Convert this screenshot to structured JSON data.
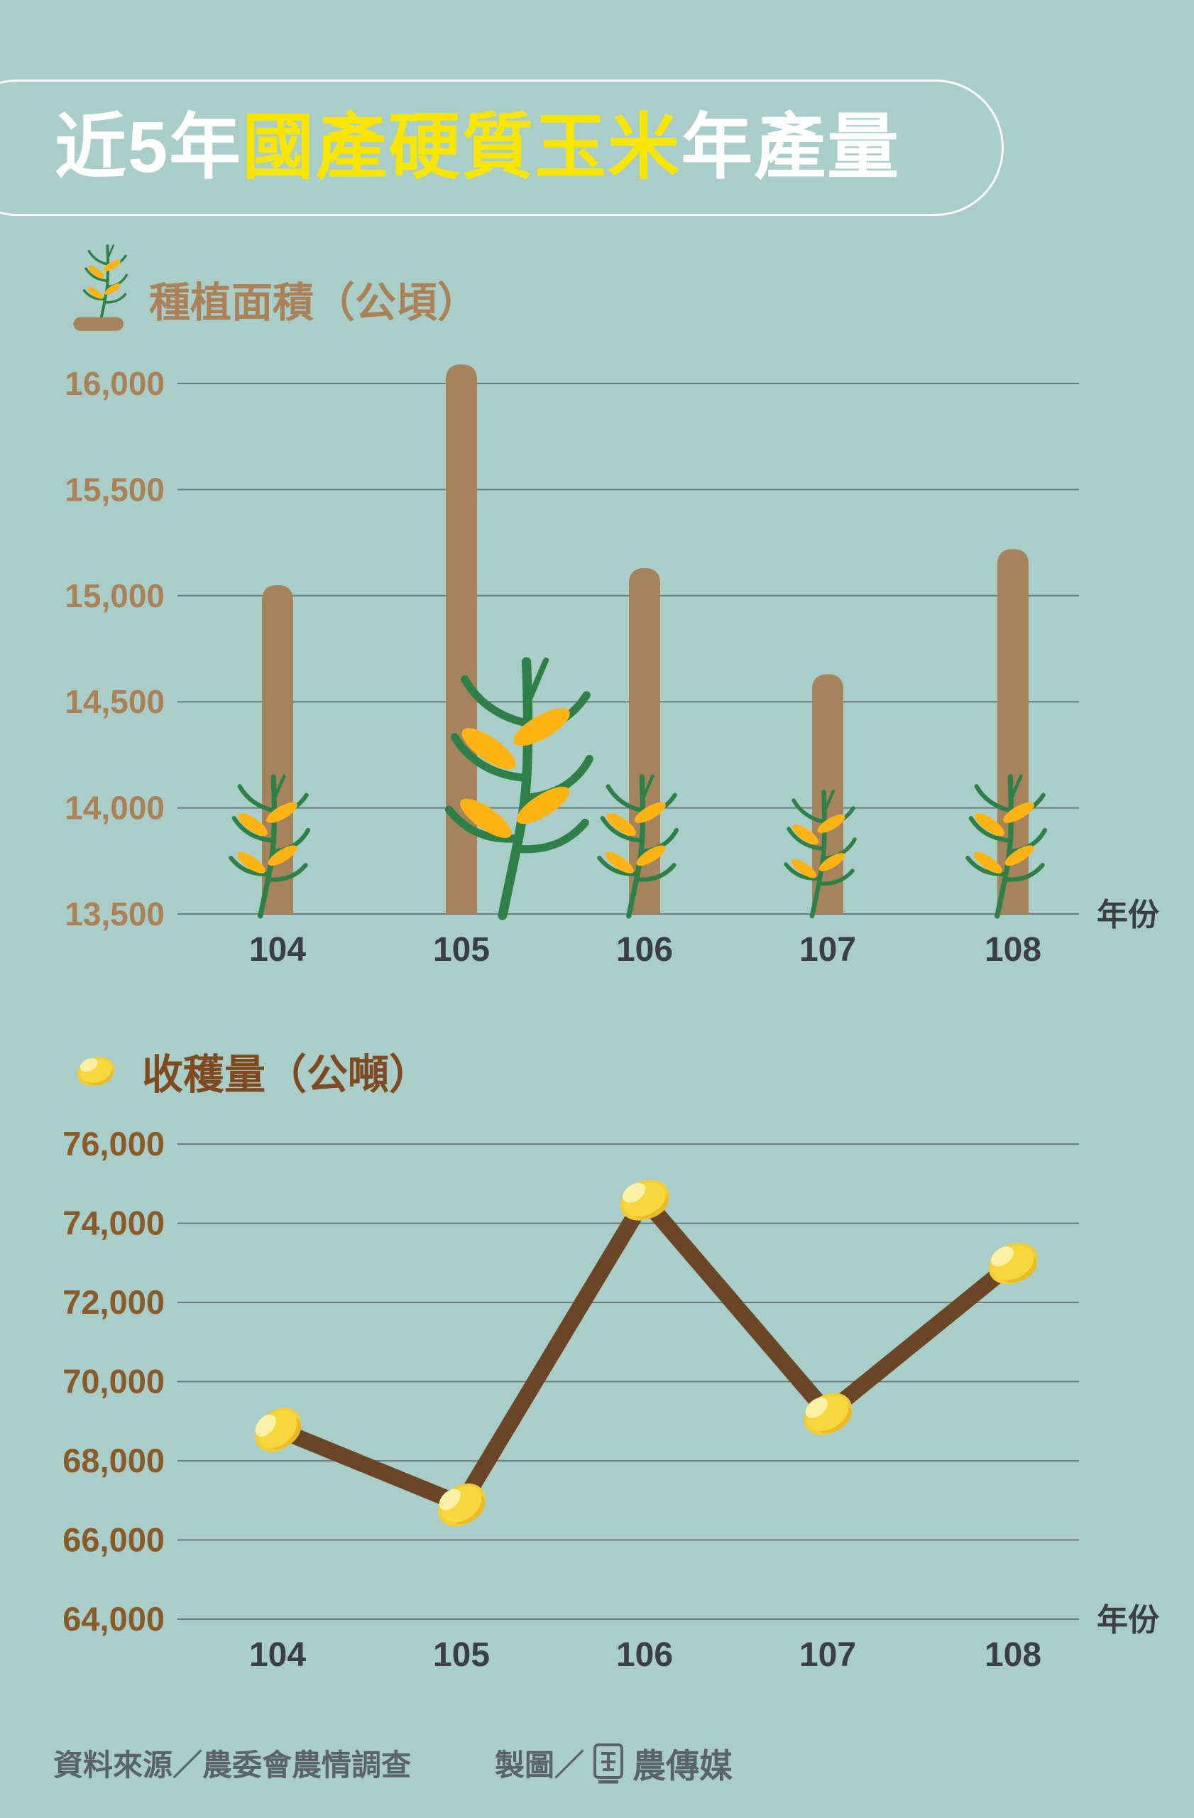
{
  "title": {
    "part1": "近5年",
    "part2": "國產硬質玉米",
    "part3": "年產量"
  },
  "colors": {
    "background": "#a9cdc8",
    "title_highlight_yellow": "#f9e600",
    "title_white": "#ffffff",
    "bar_brown": "#a5835d",
    "area_tick_brown": "#ab8157",
    "harvest_tick_brown": "#8a5a28",
    "harvest_header_brown": "#7d4a22",
    "line_dark_brown": "#6b4626",
    "kernel_yellow": "#f2cd33",
    "plant_green": "#2e8048",
    "ear_orange": "#ffb414",
    "gridline_gray": "#6e7a7c",
    "x_tick_dark": "#3a4042",
    "footer_gray": "#5a6365"
  },
  "icons": {
    "area_legend": "corn-plant-icon",
    "harvest_legend": "corn-kernel-icon",
    "footer_logo": "agriharvest-logo"
  },
  "chart_data": [
    {
      "type": "bar",
      "title": "種植面積（公頃）",
      "categories": [
        "104",
        "105",
        "106",
        "107",
        "108"
      ],
      "values": [
        15050,
        16090,
        15130,
        14630,
        15220
      ],
      "xlabel": "年份",
      "ylabel": "公頃",
      "ylim": [
        13500,
        16000
      ],
      "ytick_step": 500,
      "grid": true,
      "legend_position": "top-left"
    },
    {
      "type": "line",
      "title": "收穫量（公噸）",
      "categories": [
        "104",
        "105",
        "106",
        "107",
        "108"
      ],
      "values": [
        68800,
        66900,
        74600,
        69200,
        73000
      ],
      "xlabel": "年份",
      "ylabel": "公噸",
      "ylim": [
        64000,
        76000
      ],
      "ytick_step": 2000,
      "grid": true,
      "legend_position": "top-left"
    }
  ],
  "footer": {
    "source": "資料來源／農委會農情調查",
    "credit_prefix": "製圖／",
    "brand": "農傳媒"
  }
}
